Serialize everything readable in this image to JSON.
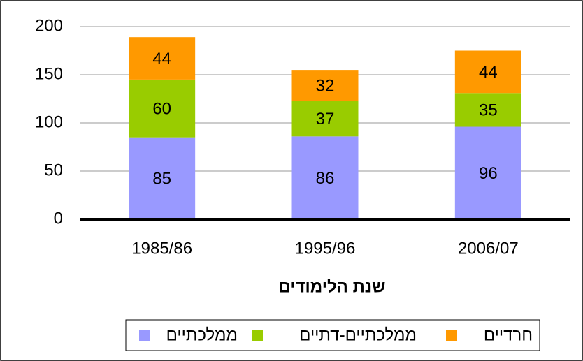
{
  "chart_data": {
    "type": "stacked_bar",
    "x_label": "שנת הלימודים",
    "categories": [
      "1985/86",
      "1995/96",
      "2006/07"
    ],
    "series": [
      {
        "name": "ממלכתיים",
        "color": "#9999ff",
        "values": [
          85,
          86,
          96
        ]
      },
      {
        "name": "ממלכתיים-דתיים",
        "color": "#99cc00",
        "values": [
          60,
          37,
          35
        ]
      },
      {
        "name": "חרדיים",
        "color": "#ff9900",
        "values": [
          44,
          32,
          44
        ]
      }
    ],
    "ylim": [
      0,
      200
    ],
    "yticks": [
      0,
      50,
      100,
      150,
      200
    ],
    "grid": true,
    "legend": "bottom"
  }
}
